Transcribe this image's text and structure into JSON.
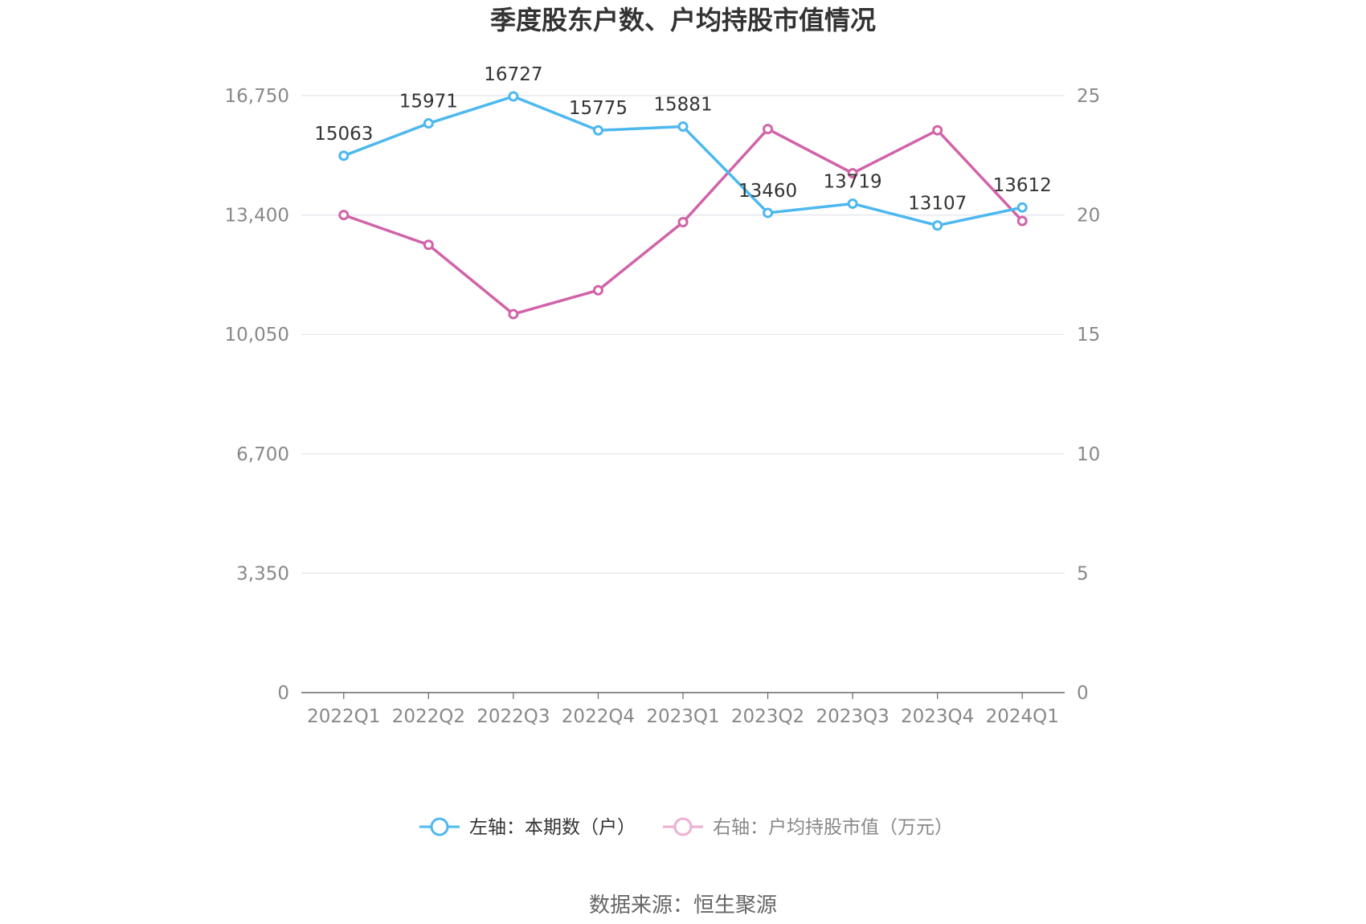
{
  "chart_data": {
    "type": "line",
    "title": "季度股东户数、户均持股市值情况",
    "categories": [
      "2022Q1",
      "2022Q2",
      "2022Q3",
      "2022Q4",
      "2023Q1",
      "2023Q2",
      "2023Q3",
      "2023Q4",
      "2024Q1"
    ],
    "left_axis": {
      "min": 0,
      "max": 16750,
      "ticks": [
        "0",
        "3,350",
        "6,700",
        "10,050",
        "13,400",
        "16,750"
      ]
    },
    "right_axis": {
      "min": 0,
      "max": 25,
      "ticks": [
        "0",
        "5",
        "10",
        "15",
        "20",
        "25"
      ]
    },
    "series": [
      {
        "name": "左轴：本期数（户）",
        "axis": "left",
        "color": "#4db8ef",
        "values": [
          15063,
          15971,
          16727,
          15775,
          15881,
          13460,
          13719,
          13107,
          13612
        ],
        "labels": [
          "15063",
          "15971",
          "16727",
          "15775",
          "15881",
          "13460",
          "13719",
          "13107",
          "13612"
        ]
      },
      {
        "name": "右轴：户均持股市值（万元）",
        "axis": "right",
        "color": "#d163a9",
        "values": [
          20.0,
          18.75,
          15.85,
          16.85,
          19.7,
          23.6,
          21.75,
          23.55,
          19.75
        ]
      }
    ],
    "grid": true,
    "legend_position": "bottom"
  },
  "source": "数据来源：恒生聚源"
}
